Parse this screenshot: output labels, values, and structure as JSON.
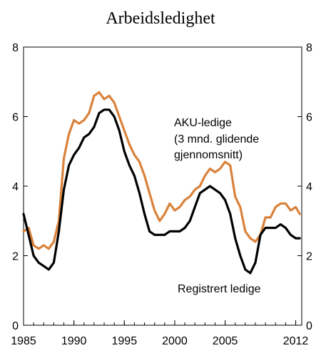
{
  "chart_data": {
    "type": "line",
    "title": "Arbeidsledighet",
    "xlabel": "",
    "ylabel": "",
    "xlim": [
      1985,
      2012.6
    ],
    "ylim": [
      0,
      8
    ],
    "x_ticks": [
      1985,
      1990,
      1995,
      2000,
      2005,
      2012
    ],
    "x_tick_labels": [
      "1985",
      "1990",
      "1995",
      "2000",
      "2005",
      "2012"
    ],
    "y_ticks": [
      0,
      2,
      4,
      6,
      8
    ],
    "y_tick_labels_left": [
      "0",
      "2",
      "4",
      "6",
      "8"
    ],
    "y_tick_labels_right": [
      "0",
      "2",
      "4",
      "6",
      "8"
    ],
    "grid": false,
    "legend": "none",
    "annotations": [
      {
        "id": "aku",
        "lines": [
          "AKU-ledige",
          "(3 mnd. glidende",
          "gjennomsnitt)"
        ]
      },
      {
        "id": "reg",
        "lines": [
          "Registrert ledige"
        ]
      }
    ],
    "series": [
      {
        "id": "aku",
        "color": "#D9823B",
        "x": [
          1985.0,
          1985.5,
          1986.0,
          1986.5,
          1987.0,
          1987.5,
          1988.0,
          1988.5,
          1989.0,
          1989.5,
          1990.0,
          1990.5,
          1991.0,
          1991.5,
          1992.0,
          1992.5,
          1993.0,
          1993.5,
          1994.0,
          1994.5,
          1995.0,
          1995.5,
          1996.0,
          1996.5,
          1997.0,
          1997.5,
          1998.0,
          1998.5,
          1999.0,
          1999.5,
          2000.0,
          2000.5,
          2001.0,
          2001.5,
          2002.0,
          2002.5,
          2003.0,
          2003.5,
          2004.0,
          2004.5,
          2005.0,
          2005.5,
          2006.0,
          2006.5,
          2007.0,
          2007.5,
          2008.0,
          2008.5,
          2009.0,
          2009.5,
          2010.0,
          2010.5,
          2011.0,
          2011.5,
          2012.0,
          2012.4
        ],
        "y": [
          2.7,
          2.8,
          2.3,
          2.2,
          2.3,
          2.2,
          2.4,
          3.0,
          4.8,
          5.5,
          5.9,
          5.8,
          5.9,
          6.1,
          6.6,
          6.7,
          6.5,
          6.6,
          6.4,
          6.0,
          5.6,
          5.2,
          4.9,
          4.7,
          4.3,
          3.8,
          3.3,
          3.0,
          3.2,
          3.5,
          3.3,
          3.4,
          3.6,
          3.7,
          3.9,
          4.0,
          4.3,
          4.5,
          4.4,
          4.5,
          4.7,
          4.6,
          3.7,
          3.4,
          2.7,
          2.5,
          2.4,
          2.6,
          3.1,
          3.1,
          3.4,
          3.5,
          3.5,
          3.3,
          3.4,
          3.2
        ]
      },
      {
        "id": "reg",
        "color": "#000000",
        "x": [
          1985.0,
          1985.5,
          1986.0,
          1986.5,
          1987.0,
          1987.5,
          1988.0,
          1988.5,
          1989.0,
          1989.5,
          1990.0,
          1990.5,
          1991.0,
          1991.5,
          1992.0,
          1992.5,
          1993.0,
          1993.5,
          1994.0,
          1994.5,
          1995.0,
          1995.5,
          1996.0,
          1996.5,
          1997.0,
          1997.5,
          1998.0,
          1998.5,
          1999.0,
          1999.5,
          2000.0,
          2000.5,
          2001.0,
          2001.5,
          2002.0,
          2002.5,
          2003.0,
          2003.5,
          2004.0,
          2004.5,
          2005.0,
          2005.5,
          2006.0,
          2006.5,
          2007.0,
          2007.5,
          2008.0,
          2008.5,
          2009.0,
          2009.5,
          2010.0,
          2010.5,
          2011.0,
          2011.5,
          2012.0,
          2012.4
        ],
        "y": [
          3.2,
          2.6,
          2.0,
          1.8,
          1.7,
          1.6,
          1.8,
          2.7,
          3.9,
          4.6,
          4.9,
          5.1,
          5.4,
          5.5,
          5.7,
          6.1,
          6.2,
          6.2,
          6.0,
          5.6,
          5.0,
          4.6,
          4.3,
          3.8,
          3.2,
          2.7,
          2.6,
          2.6,
          2.6,
          2.7,
          2.7,
          2.7,
          2.8,
          3.0,
          3.4,
          3.8,
          3.9,
          4.0,
          3.9,
          3.8,
          3.6,
          3.2,
          2.5,
          2.0,
          1.6,
          1.5,
          1.8,
          2.6,
          2.8,
          2.8,
          2.8,
          2.9,
          2.8,
          2.6,
          2.5,
          2.5
        ]
      }
    ]
  }
}
